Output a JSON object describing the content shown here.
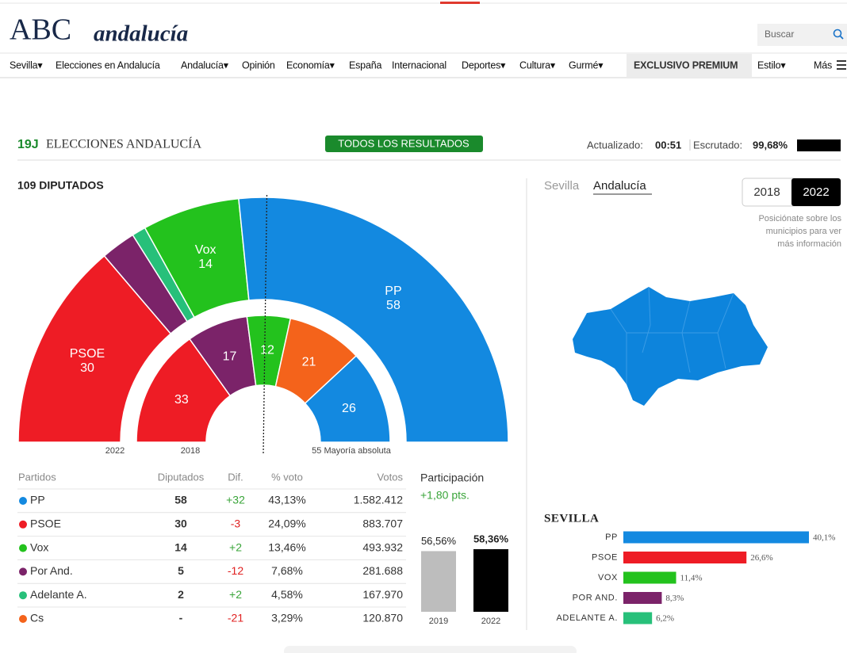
{
  "header": {
    "logo": "ABC",
    "logo_region": "andalucía",
    "search": "Buscar",
    "nav": [
      "Sevilla▾",
      "Elecciones en Andalucía",
      "Andalucía▾",
      "Opinión",
      "Economía▾",
      "España",
      "Internacional",
      "Deportes▾",
      "Cultura▾",
      "Gurmé▾",
      "EXCLUSIVO PREMIUM",
      "Estilo▾",
      "Más"
    ]
  },
  "banner": {
    "tag": "19J",
    "title": "ELECCIONES ANDALUCÍA",
    "button": "TODOS LOS RESULTADOS",
    "updated_label": "Actualizado:",
    "updated": "00:51",
    "counted_label": "Escrutado:",
    "counted": "99,68%"
  },
  "seats_title": "109 DIPUTADOS",
  "table": {
    "header": [
      "Partidos",
      "Diputados",
      "Dif.",
      "% voto",
      "Votos"
    ],
    "rows": [
      {
        "color": "#1389e0",
        "cells": [
          "PP",
          "58",
          "+32",
          "43,13%",
          "1.582.412"
        ]
      },
      {
        "color": "#ee1c25",
        "cells": [
          "PSOE",
          "30",
          "-3",
          "24,09%",
          "883.707"
        ]
      },
      {
        "color": "#23c21d",
        "cells": [
          "Vox",
          "14",
          "+2",
          "13,46%",
          "493.932"
        ]
      },
      {
        "color": "#7b2369",
        "cells": [
          "Por And.",
          "5",
          "-12",
          "7,68%",
          "281.688"
        ]
      },
      {
        "color": "#27c07a",
        "cells": [
          "Adelante A.",
          "2",
          "+2",
          "4,58%",
          "167.970"
        ]
      },
      {
        "color": "#f4631b",
        "cells": [
          "Cs",
          "-",
          "-21",
          "3,29%",
          "120.870"
        ]
      }
    ]
  },
  "participation": {
    "title": "Participación",
    "change": "+1,80 pts."
  },
  "map": {
    "tabs": [
      "Sevilla",
      "Andalucía"
    ],
    "years": [
      "2018",
      "2022"
    ],
    "hint": [
      "Posiciónate sobre los",
      "municipios para ver",
      "más información"
    ],
    "color": "#0d84dc"
  },
  "chart_data": [
    {
      "type": "hemicycle",
      "label": "2022",
      "categories": [
        "PSOE",
        null,
        null,
        "Vox",
        "PP"
      ],
      "values": [
        30,
        5,
        2,
        14,
        58
      ],
      "colors": [
        "#ee1c25",
        "#7b2369",
        "#27c07a",
        "#23c21d",
        "#1389e0"
      ]
    },
    {
      "type": "hemicycle",
      "label": "2018",
      "values": [
        33,
        17,
        12,
        21,
        26
      ],
      "colors": [
        "#ee1c25",
        "#7b2369",
        "#23c21d",
        "#f4631b",
        "#1389e0"
      ],
      "majority": {
        "value": 55,
        "label": "55 Mayoría absoluta"
      }
    },
    {
      "type": "bar",
      "categories": [
        "2019",
        "2022"
      ],
      "values": [
        56.56,
        58.36
      ],
      "value_labels": [
        "56,56%",
        "58,36%"
      ],
      "colors": [
        "#bdbdbd",
        "#000000"
      ]
    },
    {
      "type": "hbar",
      "title": "SEVILLA",
      "categories": [
        "PP",
        "PSOE",
        "VOX",
        "POR AND.",
        "ADELANTE A."
      ],
      "values": [
        40.1,
        26.6,
        11.4,
        8.3,
        6.2
      ],
      "value_labels": [
        "40,1%",
        "26,6%",
        "11,4%",
        "8,3%",
        "6,2%"
      ],
      "colors": [
        "#1389e0",
        "#ee1c25",
        "#23c21d",
        "#7b2369",
        "#27c07a"
      ]
    }
  ]
}
